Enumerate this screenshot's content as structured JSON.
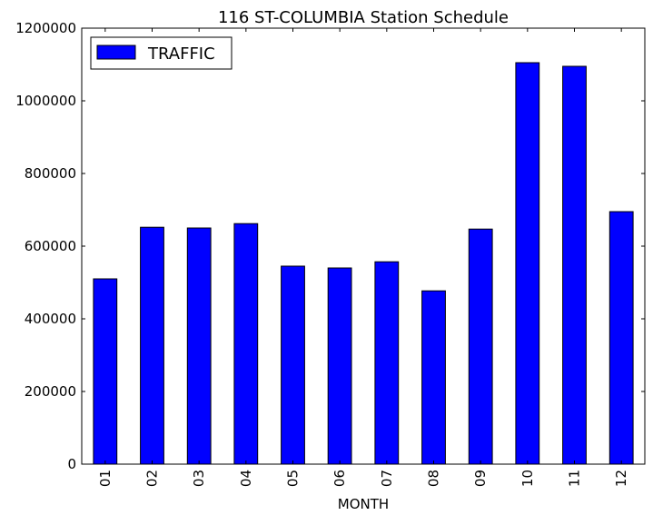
{
  "chart_data": {
    "type": "bar",
    "title": "116 ST-COLUMBIA Station Schedule",
    "xlabel": "MONTH",
    "ylabel": "",
    "categories": [
      "01",
      "02",
      "03",
      "04",
      "05",
      "06",
      "07",
      "08",
      "09",
      "10",
      "11",
      "12"
    ],
    "series": [
      {
        "name": "TRAFFIC",
        "values": [
          510000,
          652000,
          650000,
          662000,
          545000,
          540000,
          557000,
          477000,
          647000,
          1105000,
          1095000,
          695000
        ]
      }
    ],
    "ylim": [
      0,
      1200000
    ],
    "yticks": [
      "0",
      "200000",
      "400000",
      "600000",
      "800000",
      "1000000",
      "1200000"
    ],
    "legend_placement": "top-left",
    "grid": false,
    "colors": {
      "bar": "#0000ff",
      "edge": "#000000"
    }
  }
}
